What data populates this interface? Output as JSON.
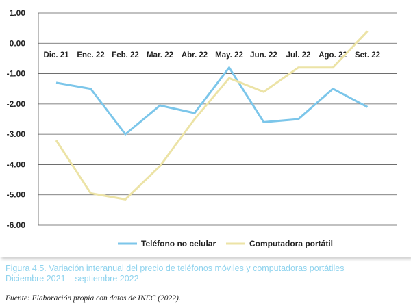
{
  "chart_data": {
    "type": "line",
    "categories": [
      "Dic. 21",
      "Ene. 22",
      "Feb. 22",
      "Mar. 22",
      "Abr. 22",
      "May. 22",
      "Jun. 22",
      "Jul. 22",
      "Ago. 22",
      "Set. 22"
    ],
    "series": [
      {
        "name": "Teléfono no celular",
        "color": "#7cc6ea",
        "values": [
          -1.3,
          -1.5,
          -3.0,
          -2.05,
          -2.3,
          -0.8,
          -2.6,
          -2.5,
          -1.5,
          -2.1
        ]
      },
      {
        "name": "Computadora portátil",
        "color": "#ece3a6",
        "values": [
          -3.2,
          -4.95,
          -5.15,
          -4.05,
          -2.5,
          -1.15,
          -1.6,
          -0.8,
          -0.8,
          0.4
        ]
      }
    ],
    "y_ticks": [
      "1.00",
      "0.00",
      "-1.00",
      "-2.00",
      "-3.00",
      "-4.00",
      "-5.00",
      "-6.00"
    ],
    "ylim": [
      -6,
      1
    ],
    "grid": true,
    "legend_position": "bottom-center",
    "x_labels_position": "top"
  },
  "caption": {
    "line1": "Figura 4.5. Variación interanual del precio de teléfonos móviles y computadoras portátiles",
    "line2": "Diciembre 2021 – septiembre 2022"
  },
  "source": "Fuente: Elaboración propia con datos de INEC (2022)."
}
